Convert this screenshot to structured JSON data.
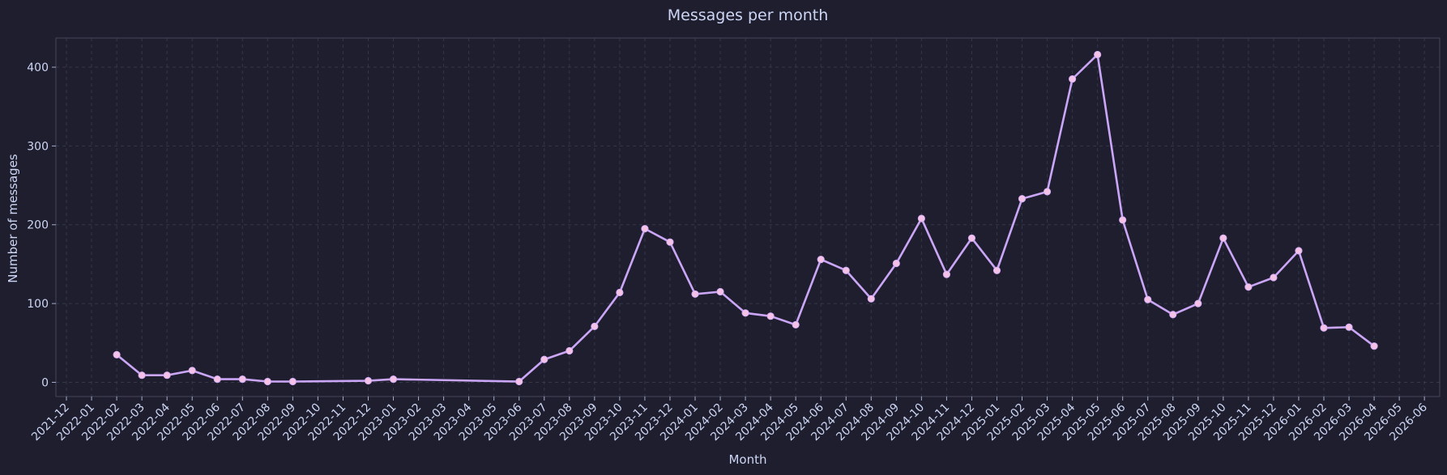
{
  "chart_data": {
    "type": "line",
    "title": "Messages per month",
    "xlabel": "Month",
    "ylabel": "Number of messages",
    "ylim": [
      -18,
      437
    ],
    "yticks": [
      0,
      100,
      200,
      300,
      400
    ],
    "grid": true,
    "x_ticks": [
      "2021-12",
      "2022-01",
      "2022-02",
      "2022-03",
      "2022-04",
      "2022-05",
      "2022-06",
      "2022-07",
      "2022-08",
      "2022-09",
      "2022-10",
      "2022-11",
      "2022-12",
      "2023-01",
      "2023-02",
      "2023-03",
      "2023-04",
      "2023-05",
      "2023-06",
      "2023-07",
      "2023-08",
      "2023-09",
      "2023-10",
      "2023-11",
      "2023-12",
      "2024-01",
      "2024-02",
      "2024-03",
      "2024-04",
      "2024-05",
      "2024-06",
      "2024-07",
      "2024-08",
      "2024-09",
      "2024-10",
      "2024-11",
      "2024-12",
      "2025-01",
      "2025-02",
      "2025-03",
      "2025-04",
      "2025-05",
      "2025-06",
      "2025-07",
      "2025-08",
      "2025-09",
      "2025-10",
      "2025-11",
      "2025-12",
      "2026-01",
      "2026-02",
      "2026-03",
      "2026-04",
      "2026-05",
      "2026-06"
    ],
    "x": [
      "2022-02",
      "2022-03",
      "2022-04",
      "2022-05",
      "2022-06",
      "2022-07",
      "2022-08",
      "2022-09",
      "2022-12",
      "2023-01",
      "2023-06",
      "2023-07",
      "2023-08",
      "2023-09",
      "2023-10",
      "2023-11",
      "2023-12",
      "2024-01",
      "2024-02",
      "2024-03",
      "2024-04",
      "2024-05",
      "2024-06",
      "2024-07",
      "2024-08",
      "2024-09",
      "2024-10",
      "2024-11",
      "2024-12",
      "2025-01",
      "2025-02",
      "2025-03",
      "2025-04",
      "2025-05",
      "2025-06",
      "2025-07",
      "2025-08",
      "2025-09",
      "2025-10",
      "2025-11",
      "2025-12",
      "2026-01",
      "2026-02",
      "2026-03",
      "2026-04"
    ],
    "series": [
      {
        "values": [
          35,
          9,
          9,
          15,
          4,
          4,
          1,
          1,
          2,
          4,
          1,
          29,
          40,
          71,
          114,
          195,
          178,
          112,
          115,
          88,
          84,
          73,
          156,
          142,
          106,
          151,
          208,
          137,
          183,
          142,
          233,
          242,
          385,
          416,
          206,
          105,
          86,
          100,
          183,
          121,
          133,
          167,
          69,
          70,
          46
        ],
        "color": "#cba6f7",
        "marker_color": "#f5c2e7"
      }
    ]
  }
}
